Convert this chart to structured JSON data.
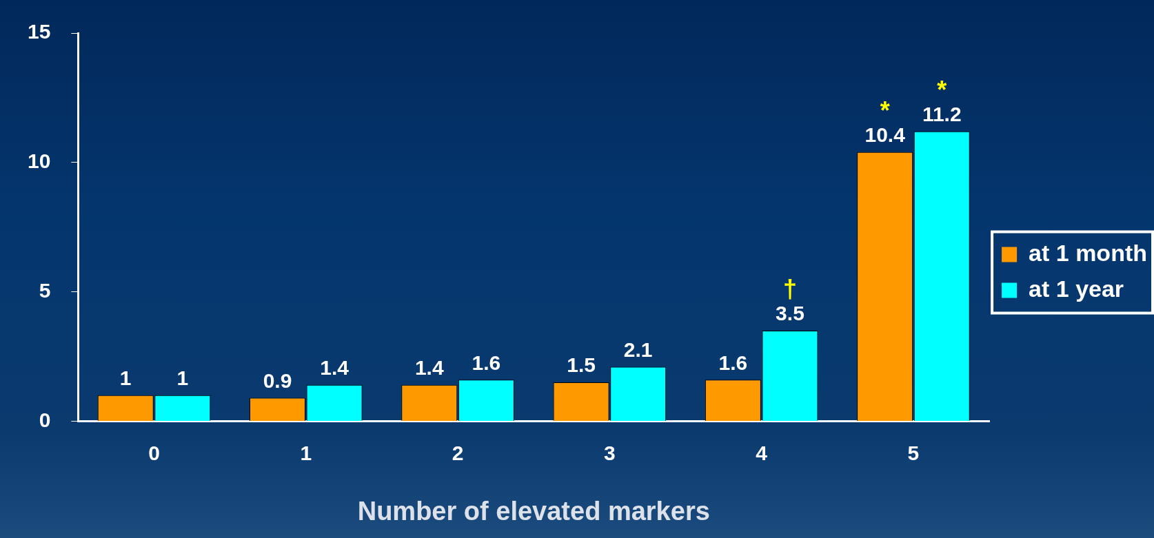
{
  "chart_data": {
    "type": "bar",
    "xlabel": "Number of elevated markers",
    "categories": [
      "0",
      "1",
      "2",
      "3",
      "4",
      "5"
    ],
    "series": [
      {
        "name": "at 1 month",
        "color": "#ff9900",
        "values": [
          1,
          0.9,
          1.4,
          1.5,
          1.6,
          10.4
        ]
      },
      {
        "name": "at 1 year",
        "color": "#00ffff",
        "values": [
          1,
          1.4,
          1.6,
          2.1,
          3.5,
          11.2
        ]
      }
    ],
    "ylim": [
      0,
      15
    ],
    "yticks": [
      0,
      5,
      10,
      15
    ],
    "grid": false,
    "legend": "right",
    "data_labels": true,
    "annotations": [
      "*",
      "*",
      "†"
    ]
  }
}
